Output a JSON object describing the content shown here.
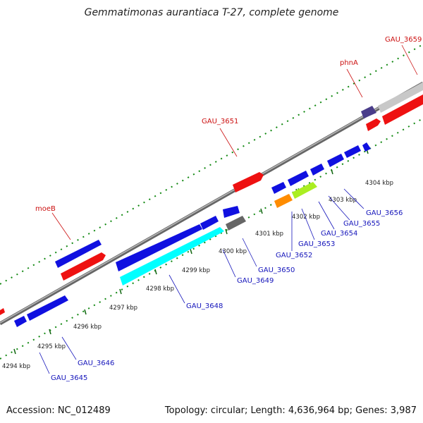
{
  "title": "Gemmatimonas aurantiaca T-27, complete genome",
  "footer": {
    "accession": "Accession: NC_012489",
    "stats": "Topology: circular; Length: 4,636,964 bp; Genes: 3,987"
  },
  "ticks": [
    "4294 kbp",
    "4295 kbp",
    "4296 kbp",
    "4297 kbp",
    "4298 kbp",
    "4299 kbp",
    "4300 kbp",
    "4301 kbp",
    "4302 kbp",
    "4303 kbp",
    "4304 kbp"
  ],
  "gene_labels_below": [
    "GAU_3645",
    "GAU_3646",
    "GAU_3648",
    "GAU_3649",
    "GAU_3650",
    "GAU_3652",
    "GAU_3653",
    "GAU_3654",
    "GAU_3655",
    "GAU_3656"
  ],
  "gene_labels_above": [
    "moeB",
    "GAU_3651",
    "phnA",
    "GAU_3659"
  ],
  "colors": {
    "backbone": "#888888",
    "forward_gene": "#ff0000",
    "reverse_gene": "#1010e0",
    "highlight_gene": "#00ffff",
    "ruler_dots": "#118811",
    "label_blue": "#1515bb",
    "label_red": "#cc1111"
  }
}
